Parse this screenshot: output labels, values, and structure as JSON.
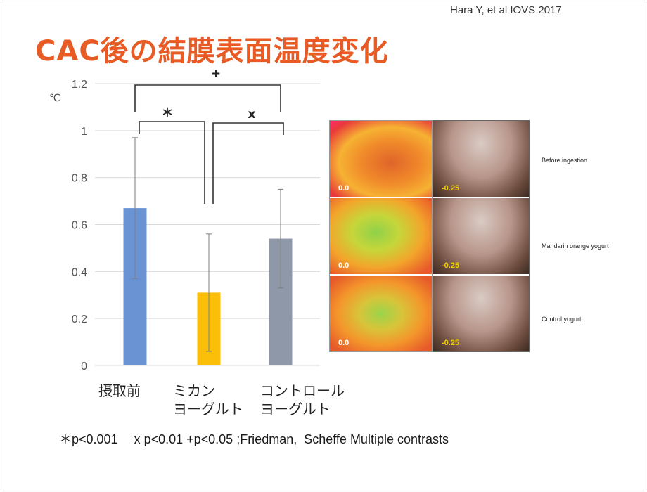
{
  "citation": "Hara Y, et al IOVS 2017",
  "title": "CAC後の結膜表面温度変化",
  "footnote": "＊p<0.001　 x p<0.01 +p<0.05 ;Friedman,  Scheffe Multiple contrasts",
  "chart_data": {
    "type": "bar",
    "ylabel": "℃",
    "ylim": [
      0,
      1.2
    ],
    "yticks": [
      0,
      0.2,
      0.4,
      0.6,
      0.8,
      1,
      1.2
    ],
    "ytick_labels": [
      "0",
      "0.2",
      "0.4",
      "0.6",
      "0.8",
      "1",
      "1.2"
    ],
    "grid": true,
    "categories": [
      {
        "lines": [
          "摂取前"
        ],
        "value": 0.67,
        "err_low": 0.37,
        "err_high": 0.97,
        "color": "#6a93d4"
      },
      {
        "lines": [
          "ミカン",
          "ヨーグルト"
        ],
        "value": 0.31,
        "err_low": 0.06,
        "err_high": 0.56,
        "color": "#fbbf09"
      },
      {
        "lines": [
          "コントロール",
          "ヨーグルト"
        ],
        "value": 0.54,
        "err_low": 0.33,
        "err_high": 0.75,
        "color": "#8f98a9"
      }
    ],
    "significance": [
      {
        "from": 0,
        "to": 2,
        "symbol": "+"
      },
      {
        "from": 0,
        "to": 1,
        "symbol": "＊"
      },
      {
        "from": 1,
        "to": 2,
        "symbol": "x"
      }
    ]
  },
  "images": {
    "thermal_values": [
      "0.0",
      "0.0",
      "0.0"
    ],
    "photo_values": [
      "-0.25",
      "-0.25",
      "-0.25"
    ],
    "conditions": [
      "Before ingestion",
      "Mandarin orange yogurt",
      "Control yogurt"
    ]
  }
}
